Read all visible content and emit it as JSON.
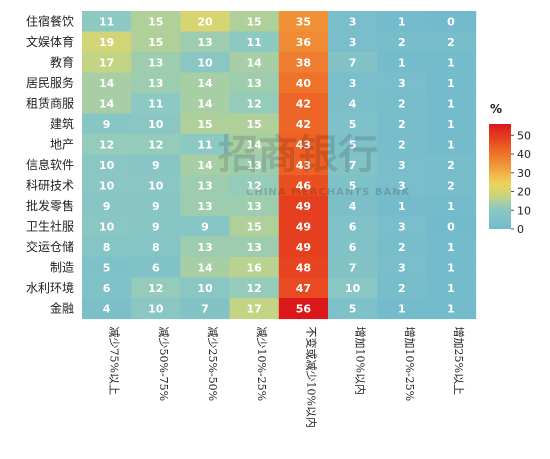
{
  "chart_data": {
    "type": "heatmap",
    "rows": [
      "住宿餐饮",
      "文娱体育",
      "教育",
      "居民服务",
      "租赁商服",
      "建筑",
      "地产",
      "信息软件",
      "科研技术",
      "批发零售",
      "卫生社服",
      "交运仓储",
      "制造",
      "水利环境",
      "金融"
    ],
    "columns": [
      "减少75%以上",
      "减少50%-75%",
      "减少25%-50%",
      "减少10%-25%",
      "不变或减少10%以内",
      "增加10%以内",
      "增加10%-25%",
      "增加25%以上"
    ],
    "values": [
      [
        11,
        15,
        20,
        15,
        35,
        3,
        1,
        0
      ],
      [
        19,
        15,
        13,
        11,
        36,
        3,
        2,
        2
      ],
      [
        17,
        13,
        10,
        14,
        38,
        7,
        1,
        1
      ],
      [
        14,
        13,
        14,
        13,
        40,
        3,
        3,
        1
      ],
      [
        14,
        11,
        14,
        12,
        42,
        4,
        2,
        1
      ],
      [
        9,
        10,
        15,
        15,
        42,
        5,
        2,
        1
      ],
      [
        12,
        12,
        11,
        14,
        43,
        5,
        2,
        1
      ],
      [
        10,
        9,
        14,
        13,
        43,
        7,
        3,
        2
      ],
      [
        10,
        10,
        13,
        12,
        46,
        5,
        3,
        2
      ],
      [
        9,
        9,
        13,
        13,
        49,
        4,
        1,
        1
      ],
      [
        10,
        9,
        9,
        15,
        49,
        6,
        3,
        0
      ],
      [
        8,
        8,
        13,
        13,
        49,
        6,
        2,
        1
      ],
      [
        5,
        6,
        14,
        16,
        48,
        7,
        3,
        1
      ],
      [
        6,
        12,
        10,
        12,
        47,
        10,
        2,
        1
      ],
      [
        4,
        10,
        7,
        17,
        56,
        5,
        1,
        1
      ]
    ],
    "legend": {
      "unit": "%",
      "ticks": [
        0,
        10,
        20,
        30,
        40,
        50
      ],
      "range": [
        0,
        56
      ],
      "placement": "right"
    }
  },
  "watermark": {
    "main": "招商银行",
    "sub": "CHINA MERCHANTS BANK"
  }
}
